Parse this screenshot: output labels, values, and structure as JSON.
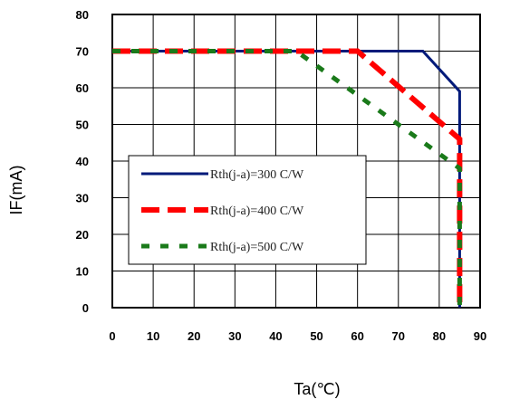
{
  "chart_data": {
    "type": "line",
    "title": "",
    "xlabel": "Ta(℃)",
    "ylabel": "IF(mA)",
    "xlim": [
      0,
      90
    ],
    "ylim": [
      0,
      80
    ],
    "xticks": [
      0,
      10,
      20,
      30,
      40,
      50,
      60,
      70,
      80,
      90
    ],
    "yticks": [
      0,
      10,
      20,
      30,
      40,
      50,
      60,
      70,
      80
    ],
    "grid": true,
    "legend_position": "left",
    "series": [
      {
        "name": "Rth(j-a)=300 C/W",
        "color": "#001a7a",
        "style": "solid",
        "points": [
          [
            0,
            70
          ],
          [
            76,
            70
          ],
          [
            85,
            59
          ],
          [
            85,
            0
          ]
        ]
      },
      {
        "name": "Rth(j-a)=400 C/W",
        "color": "#ff0000",
        "style": "dashed",
        "points": [
          [
            0,
            70
          ],
          [
            60,
            70
          ],
          [
            85,
            46
          ],
          [
            85,
            0
          ]
        ]
      },
      {
        "name": "Rth(j-a)=500 C/W",
        "color": "#1a7a1a",
        "style": "dotted",
        "points": [
          [
            0,
            70
          ],
          [
            45,
            70
          ],
          [
            85,
            38
          ],
          [
            85,
            0
          ]
        ]
      }
    ]
  }
}
